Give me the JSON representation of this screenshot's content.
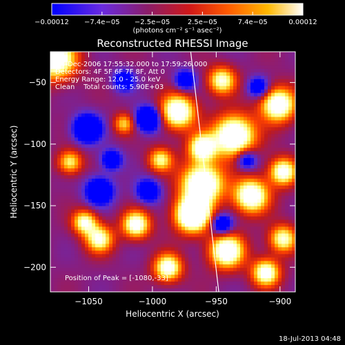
{
  "chart_data": {
    "type": "heatmap",
    "title": "Reconstructed RHESSI Image",
    "xlabel": "Heliocentric X (arcsec)",
    "ylabel": "Heliocentric Y (arcsec)",
    "xlim": [
      -1080,
      -888
    ],
    "ylim": [
      -220,
      -25
    ],
    "x_ticks": [
      {
        "value": -1050,
        "label": "−1050"
      },
      {
        "value": -1000,
        "label": "−1000"
      },
      {
        "value": -950,
        "label": "−950"
      },
      {
        "value": -900,
        "label": "−900"
      }
    ],
    "y_ticks": [
      {
        "value": -50,
        "label": "−50"
      },
      {
        "value": -100,
        "label": "−100"
      },
      {
        "value": -150,
        "label": "−150"
      },
      {
        "value": -200,
        "label": "−200"
      }
    ],
    "colorbar": {
      "range": [
        -0.00012,
        0.00012
      ],
      "tick_labels": [
        "−0.00012",
        "−7.4e−05",
        "−2.5e−05",
        "2.5e−05",
        "7.4e−05",
        "0.00012"
      ],
      "units": "(photons cm⁻² s⁻¹ asec⁻²)"
    },
    "annotations": {
      "time_range": "4-Dec-2006 17:55:32.000 to 17:59:26.000",
      "detectors": "Detectors: 4F 5F 6F 7F 8F, Att 0",
      "energy": "Energy Range: 12.0 - 25.0 keV",
      "clean": "Clean    Total counts: 5.90E+03",
      "peak": "Position of Peak = [-1080,-33]"
    },
    "limb_line": [
      [
        -970,
        -25
      ],
      [
        -948,
        -220
      ]
    ],
    "grid": false,
    "colormap": [
      "#0000ff",
      "#5a2fd0",
      "#8a1d7a",
      "#c01a1a",
      "#ff4400",
      "#ffaa00",
      "#ffff80",
      "#ffffff"
    ]
  },
  "footer": {
    "timestamp": "18-Jul-2013 04:48"
  }
}
